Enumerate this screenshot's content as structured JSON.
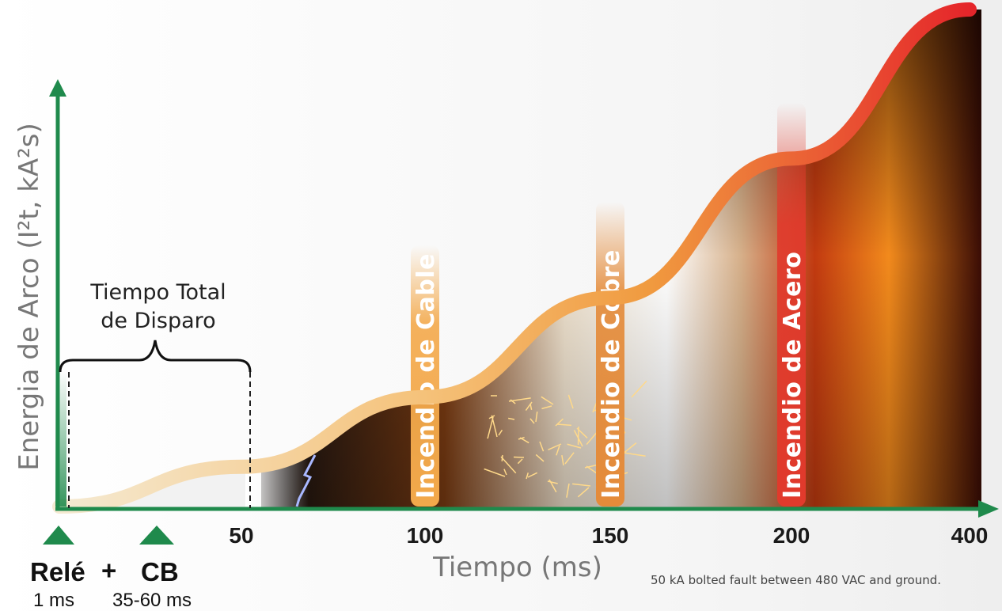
{
  "chart_data": {
    "type": "area",
    "ylabel": "Energia de Arco (I²t, kA²s)",
    "xlabel": "Tiempo (ms)",
    "x_ticks": [
      "50",
      "100",
      "150",
      "200",
      "400"
    ],
    "curve": {
      "x": [
        0,
        50,
        100,
        150,
        200,
        400
      ],
      "y": [
        0,
        0.08,
        0.22,
        0.42,
        0.7,
        1.0
      ]
    },
    "bands": [
      {
        "x": 100,
        "label": "Incendio de Cable",
        "color": "#f3a94b"
      },
      {
        "x": 150,
        "label": "Incendio de Cobre",
        "color": "#e48b3a"
      },
      {
        "x": 200,
        "label": "Incendio de Acero",
        "color": "#e13a2c"
      }
    ],
    "bracket": {
      "label_line1": "Tiempo Total",
      "label_line2": "de Disparo",
      "x_start": 0,
      "x_end": 50
    },
    "markers": [
      {
        "label": "Relé",
        "sub": "1 ms"
      },
      {
        "label": "CB",
        "sub": "35-60 ms"
      }
    ],
    "marker_join": "+",
    "note": "50 kA bolted fault between 480 VAC and ground."
  },
  "colors": {
    "axis": "#1f8a4c",
    "curve_start": "#f7e0b0",
    "curve_mid": "#f2a03c",
    "curve_end": "#e5252a"
  }
}
